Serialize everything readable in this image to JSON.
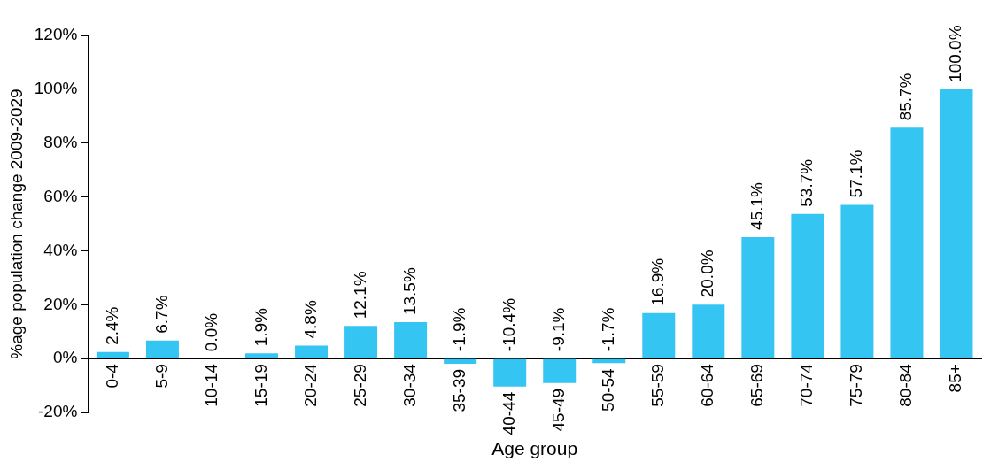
{
  "chart_data": {
    "type": "bar",
    "xlabel": "Age group",
    "ylabel": "%age population change 2009-2029",
    "categories": [
      "0-4",
      "5-9",
      "10-14",
      "15-19",
      "20-24",
      "25-29",
      "30-34",
      "35-39",
      "40-44",
      "45-49",
      "50-54",
      "55-59",
      "60-64",
      "65-69",
      "70-74",
      "75-79",
      "80-84",
      "85+"
    ],
    "values": [
      2.4,
      6.7,
      0.0,
      1.9,
      4.8,
      12.1,
      13.5,
      -1.9,
      -10.4,
      -9.1,
      -1.7,
      16.9,
      20.0,
      45.1,
      53.7,
      57.1,
      85.7,
      100.0
    ],
    "value_labels": [
      "2.4%",
      "6.7%",
      "0.0%",
      "1.9%",
      "4.8%",
      "12.1%",
      "13.5%",
      "-1.9%",
      "-10.4%",
      "-9.1%",
      "-1.7%",
      "16.9%",
      "20.0%",
      "45.1%",
      "53.7%",
      "57.1%",
      "85.7%",
      "100.0%"
    ],
    "color": "#35c5f2",
    "ylim": [
      -20,
      120
    ],
    "yticks": [
      {
        "value": -20,
        "label": "-20%"
      },
      {
        "value": 0,
        "label": "0%"
      },
      {
        "value": 20,
        "label": "20%"
      },
      {
        "value": 40,
        "label": "40%"
      },
      {
        "value": 60,
        "label": "60%"
      },
      {
        "value": 80,
        "label": "80%"
      },
      {
        "value": 100,
        "label": "100%"
      },
      {
        "value": 120,
        "label": "120%"
      }
    ],
    "grid": false,
    "legend": false
  }
}
